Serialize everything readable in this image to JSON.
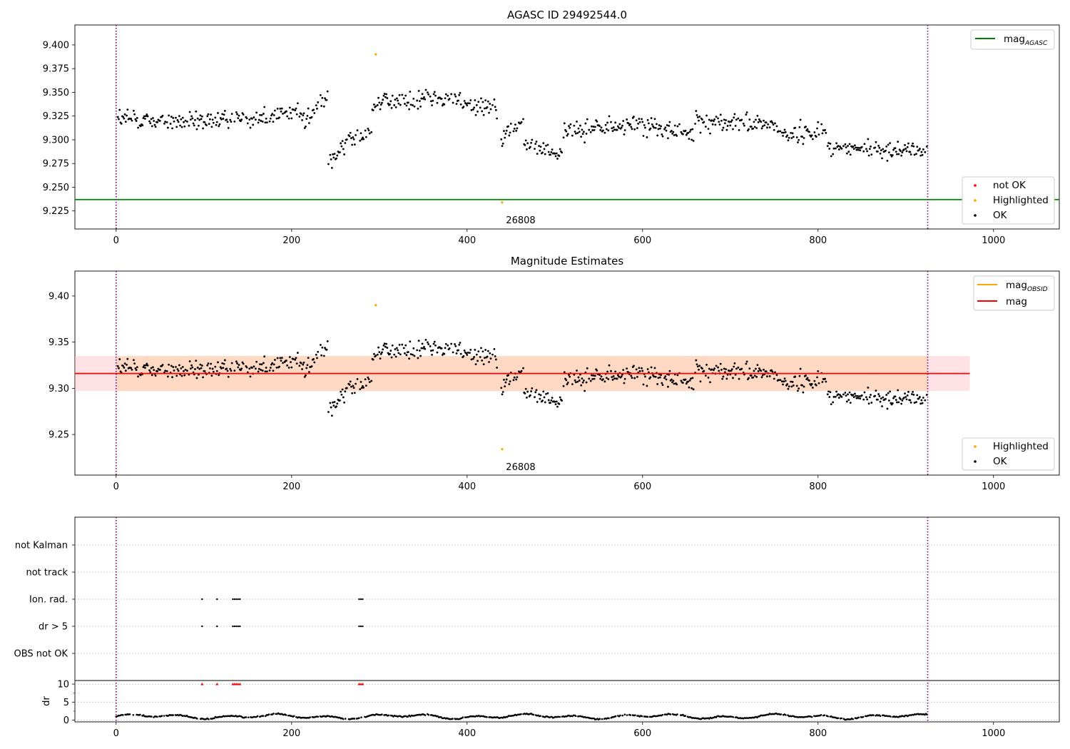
{
  "chart_data": [
    {
      "type": "scatter",
      "title": "AGASC ID 29492544.0",
      "xlim": [
        -47,
        1075
      ],
      "ylim": [
        9.206,
        9.421
      ],
      "xticks": [
        "0",
        "200",
        "400",
        "600",
        "800",
        "1000"
      ],
      "yticks": [
        "9.225",
        "9.250",
        "9.275",
        "9.300",
        "9.325",
        "9.350",
        "9.375",
        "9.400"
      ],
      "mag_agasc": 9.237,
      "vlines": [
        0,
        925
      ],
      "highlighted_points": [
        {
          "x": 296,
          "y": 9.39
        },
        {
          "x": 440,
          "y": 9.234
        }
      ],
      "annotation": {
        "text": "26808",
        "x": 440,
        "y": 9.234
      },
      "legend_upper": [
        {
          "label": "mag",
          "subscript": "AGASC",
          "color": "#008000",
          "marker": "line"
        }
      ],
      "legend_lower": [
        {
          "label": "not OK",
          "color": "#ff0000",
          "marker": "dot"
        },
        {
          "label": "Highlighted",
          "color": "#ffa500",
          "marker": "dot"
        },
        {
          "label": "OK",
          "color": "#000000",
          "marker": "dot"
        }
      ],
      "series": [
        {
          "name": "OK",
          "segments": [
            {
              "x0": 0,
              "x1": 88,
              "m0": 9.322,
              "m1": 9.318,
              "b": 9.33,
              "s": 0.009
            },
            {
              "x0": 88,
              "x1": 215,
              "m0": 9.318,
              "m1": 9.33,
              "s": 0.009
            },
            {
              "x0": 215,
              "x1": 242,
              "m0": 9.32,
              "m1": 9.345,
              "s": 0.01
            },
            {
              "x0": 242,
              "x1": 262,
              "m0": 9.275,
              "m1": 9.295,
              "s": 0.008
            },
            {
              "x0": 262,
              "x1": 292,
              "m0": 9.3,
              "m1": 9.31,
              "s": 0.008
            },
            {
              "x0": 292,
              "x1": 350,
              "m0": 9.338,
              "m1": 9.342,
              "s": 0.009
            },
            {
              "x0": 350,
              "x1": 435,
              "m0": 9.345,
              "m1": 9.335,
              "s": 0.01
            },
            {
              "x0": 437,
              "x1": 465,
              "m0": 9.3,
              "m1": 9.32,
              "s": 0.009
            },
            {
              "x0": 465,
              "x1": 510,
              "m0": 9.295,
              "m1": 9.285,
              "s": 0.009
            },
            {
              "x0": 510,
              "x1": 590,
              "m0": 9.31,
              "m1": 9.315,
              "s": 0.009
            },
            {
              "x0": 590,
              "x1": 660,
              "m0": 9.317,
              "m1": 9.305,
              "s": 0.009
            },
            {
              "x0": 660,
              "x1": 755,
              "m0": 9.32,
              "m1": 9.315,
              "s": 0.009
            },
            {
              "x0": 755,
              "x1": 810,
              "m0": 9.305,
              "m1": 9.31,
              "s": 0.009
            },
            {
              "x0": 810,
              "x1": 925,
              "m0": 9.292,
              "m1": 9.288,
              "s": 0.008
            }
          ]
        }
      ]
    },
    {
      "type": "scatter",
      "title": "Magnitude Estimates",
      "xlim": [
        -47,
        1075
      ],
      "ylim": [
        9.206,
        9.427
      ],
      "xticks": [
        "0",
        "200",
        "400",
        "600",
        "800",
        "1000"
      ],
      "yticks": [
        "9.25",
        "9.30",
        "9.35",
        "9.40"
      ],
      "mag": 9.316,
      "band": [
        9.297,
        9.335
      ],
      "band_xrange": [
        -47,
        973
      ],
      "vlines": [
        0,
        925
      ],
      "highlighted_points": [
        {
          "x": 296,
          "y": 9.39
        },
        {
          "x": 440,
          "y": 9.234
        }
      ],
      "annotation": {
        "text": "26808",
        "x": 440,
        "y": 9.234
      },
      "legend_upper": [
        {
          "label": "mag",
          "subscript": "OBSID",
          "color": "#ffa500",
          "marker": "line"
        },
        {
          "label": "mag",
          "color": "#ff0000",
          "marker": "line"
        }
      ],
      "legend_lower": [
        {
          "label": "Highlighted",
          "color": "#ffa500",
          "marker": "dot"
        },
        {
          "label": "OK",
          "color": "#000000",
          "marker": "dot"
        }
      ]
    },
    {
      "type": "scatter",
      "xlim": [
        -47,
        1075
      ],
      "xticks": [
        "0",
        "200",
        "400",
        "600",
        "800",
        "1000"
      ],
      "flag_labels": [
        "not Kalman",
        "not track",
        "Ion. rad.",
        "dr > 5",
        "OBS not OK"
      ],
      "flag_points": {
        "Ion. rad.": [
          98,
          115,
          133,
          135,
          137,
          139,
          141,
          277,
          279,
          281
        ],
        "dr > 5": [
          98,
          115,
          133,
          135,
          137,
          139,
          141,
          277,
          279,
          281
        ]
      },
      "dr_ylabel": "dr",
      "dr_ylim": [
        -0.5,
        11
      ],
      "dr_yticks": [
        "0",
        "5",
        "10"
      ],
      "dr_clipped_points": [
        98,
        115,
        133,
        135,
        137,
        139,
        141,
        277,
        279,
        281
      ],
      "dr_baseline": 1.0,
      "vlines": [
        0,
        925
      ]
    }
  ]
}
